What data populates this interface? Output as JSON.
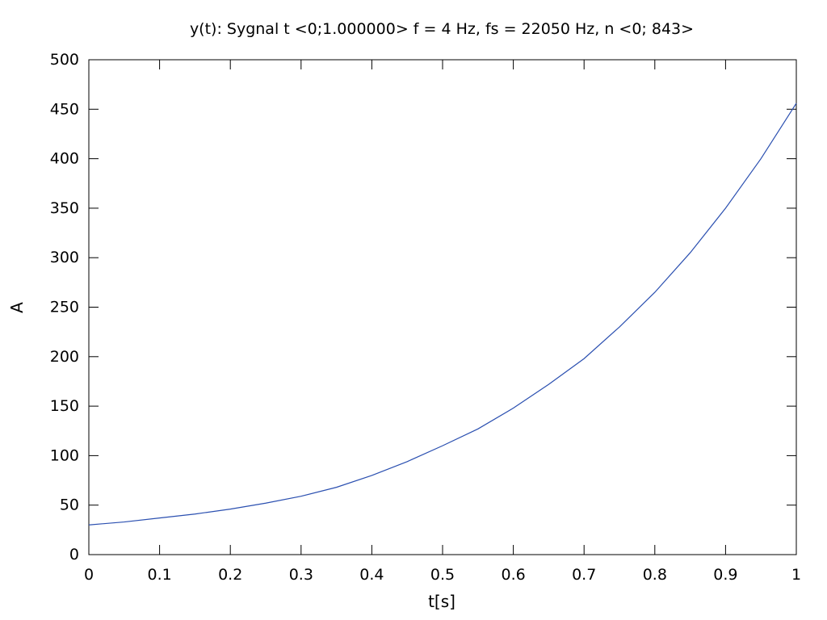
{
  "chart_data": {
    "type": "line",
    "title": "y(t): Sygnal t <0;1.000000> f = 4 Hz, fs = 22050 Hz, n <0; 843>",
    "xlabel": "t[s]",
    "ylabel": "A",
    "xlim": [
      0,
      1
    ],
    "ylim": [
      0,
      500
    ],
    "xticks": [
      0,
      0.1,
      0.2,
      0.3,
      0.4,
      0.5,
      0.6,
      0.7,
      0.8,
      0.9,
      1
    ],
    "xtick_labels": [
      "0",
      "0.1",
      "0.2",
      "0.3",
      "0.4",
      "0.5",
      "0.6",
      "0.7",
      "0.8",
      "0.9",
      "1"
    ],
    "yticks": [
      0,
      50,
      100,
      150,
      200,
      250,
      300,
      350,
      400,
      450,
      500
    ],
    "ytick_labels": [
      "0",
      "50",
      "100",
      "150",
      "200",
      "250",
      "300",
      "350",
      "400",
      "450",
      "500"
    ],
    "grid": false,
    "legend": "none",
    "line_color": "#2a4fb0",
    "series": [
      {
        "x": [
          0,
          0.05,
          0.1,
          0.15,
          0.2,
          0.25,
          0.3,
          0.35,
          0.4,
          0.45,
          0.5,
          0.55,
          0.6,
          0.65,
          0.7,
          0.75,
          0.8,
          0.85,
          0.9,
          0.95,
          1
        ],
        "values": [
          30,
          33,
          37,
          41,
          46,
          52,
          59,
          68,
          80,
          94,
          110,
          127,
          148,
          172,
          198,
          230,
          265,
          305,
          350,
          400,
          456
        ]
      }
    ]
  }
}
